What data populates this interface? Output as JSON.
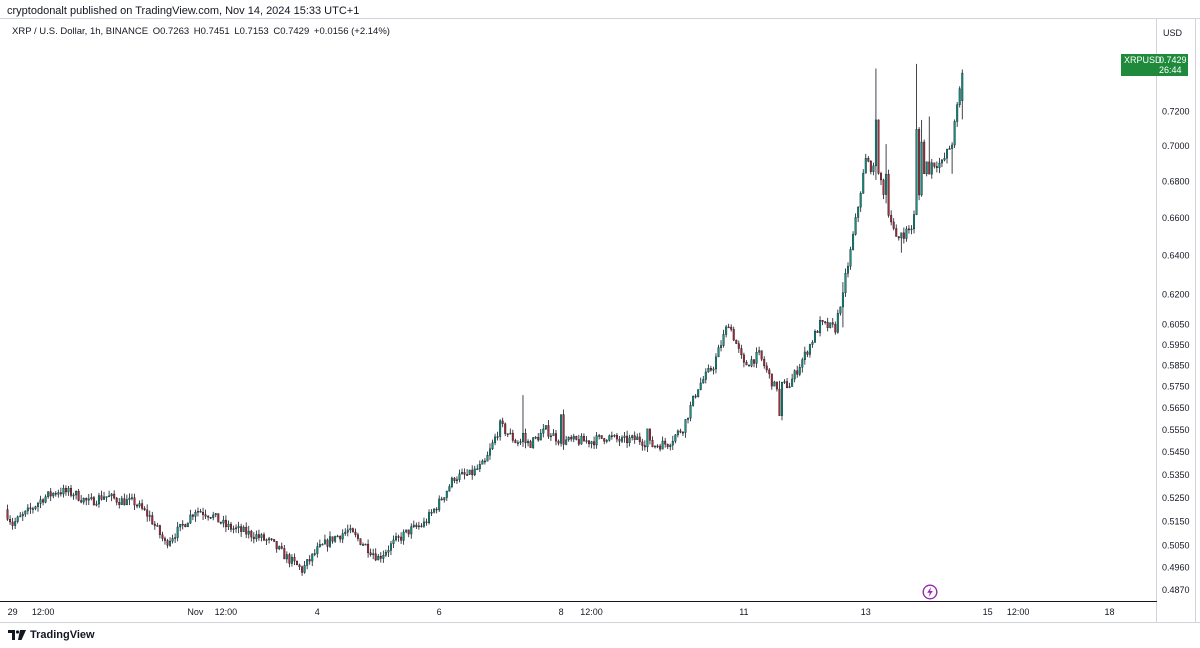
{
  "caption": "cryptodonalt published on TradingView.com, Nov 14, 2024 15:33 UTC+1",
  "legend": {
    "symbol": "XRP / U.S. Dollar, 1h, BINANCE",
    "open": "O0.7263",
    "high": "H0.7451",
    "low": "L0.7153",
    "close": "C0.7429",
    "change": "+0.0156 (+2.14%)"
  },
  "currency": "USD",
  "price_tag": {
    "symbol": "XRPUSD",
    "price": "0.7429",
    "countdown": "26:44"
  },
  "brand": {
    "name": "TradingView"
  },
  "colors": {
    "up": "#089981",
    "down": "#b22833",
    "wick": "#131722",
    "tag": "#1f8a3b",
    "flash": "#9c27b0"
  },
  "chart_data": {
    "type": "candlestick",
    "interval": "1h",
    "y_scale": "log",
    "ylim": [
      0.483,
      0.767
    ],
    "y_ticks": [
      "0.7200",
      "0.7000",
      "0.6800",
      "0.6600",
      "0.6400",
      "0.6200",
      "0.6050",
      "0.5950",
      "0.5850",
      "0.5750",
      "0.5650",
      "0.5550",
      "0.5450",
      "0.5350",
      "0.5250",
      "0.5150",
      "0.5050",
      "0.4960",
      "0.4870"
    ],
    "x_ticks": [
      "29",
      "12:00",
      "Nov",
      "12:00",
      "4",
      "6",
      "8",
      "12:00",
      "11",
      "13",
      "15",
      "12:00",
      "18"
    ],
    "x_tick_hours": [
      0,
      12,
      72,
      84,
      120,
      168,
      216,
      228,
      288,
      336,
      384,
      396,
      432
    ],
    "x_range_hours": [
      -3,
      444
    ],
    "last_candle_hour": 374,
    "keypoints": [
      [
        -3,
        0.52
      ],
      [
        0,
        0.514
      ],
      [
        6,
        0.519
      ],
      [
        12,
        0.525
      ],
      [
        18,
        0.528
      ],
      [
        24,
        0.527
      ],
      [
        30,
        0.523
      ],
      [
        36,
        0.526
      ],
      [
        42,
        0.524
      ],
      [
        48,
        0.523
      ],
      [
        54,
        0.517
      ],
      [
        60,
        0.506
      ],
      [
        66,
        0.512
      ],
      [
        72,
        0.52
      ],
      [
        78,
        0.518
      ],
      [
        84,
        0.513
      ],
      [
        90,
        0.511
      ],
      [
        96,
        0.509
      ],
      [
        102,
        0.506
      ],
      [
        108,
        0.5
      ],
      [
        114,
        0.495
      ],
      [
        120,
        0.503
      ],
      [
        126,
        0.508
      ],
      [
        132,
        0.511
      ],
      [
        138,
        0.506
      ],
      [
        144,
        0.5
      ],
      [
        150,
        0.506
      ],
      [
        156,
        0.511
      ],
      [
        162,
        0.514
      ],
      [
        168,
        0.523
      ],
      [
        174,
        0.534
      ],
      [
        180,
        0.535
      ],
      [
        186,
        0.54
      ],
      [
        192,
        0.557
      ],
      [
        198,
        0.55
      ],
      [
        204,
        0.549
      ],
      [
        210,
        0.555
      ],
      [
        216,
        0.55
      ],
      [
        222,
        0.55
      ],
      [
        228,
        0.55
      ],
      [
        234,
        0.552
      ],
      [
        240,
        0.55
      ],
      [
        246,
        0.551
      ],
      [
        252,
        0.548
      ],
      [
        258,
        0.549
      ],
      [
        264,
        0.556
      ],
      [
        270,
        0.575
      ],
      [
        276,
        0.585
      ],
      [
        282,
        0.606
      ],
      [
        288,
        0.585
      ],
      [
        294,
        0.59
      ],
      [
        300,
        0.575
      ],
      [
        306,
        0.576
      ],
      [
        312,
        0.59
      ],
      [
        318,
        0.605
      ],
      [
        324,
        0.603
      ],
      [
        330,
        0.642
      ],
      [
        336,
        0.692
      ],
      [
        342,
        0.68
      ],
      [
        348,
        0.648
      ],
      [
        354,
        0.655
      ],
      [
        360,
        0.69
      ],
      [
        366,
        0.69
      ],
      [
        370,
        0.702
      ],
      [
        374,
        0.7429
      ]
    ],
    "spikes": [
      [
        201,
        0.571,
        0.5535
      ],
      [
        216,
        0.549,
        0.562
      ],
      [
        250,
        0.546,
        0.5555
      ],
      [
        302,
        0.577,
        0.5615
      ],
      [
        327,
        0.6035,
        0.6208
      ],
      [
        340,
        0.7457,
        0.715
      ],
      [
        344,
        0.701,
        0.684
      ],
      [
        350,
        0.6415,
        0.652
      ],
      [
        356,
        0.7485,
        0.7095
      ],
      [
        358,
        0.715,
        0.7022
      ],
      [
        361,
        0.717,
        0.684
      ],
      [
        370,
        0.6842,
        0.7005
      ]
    ]
  }
}
